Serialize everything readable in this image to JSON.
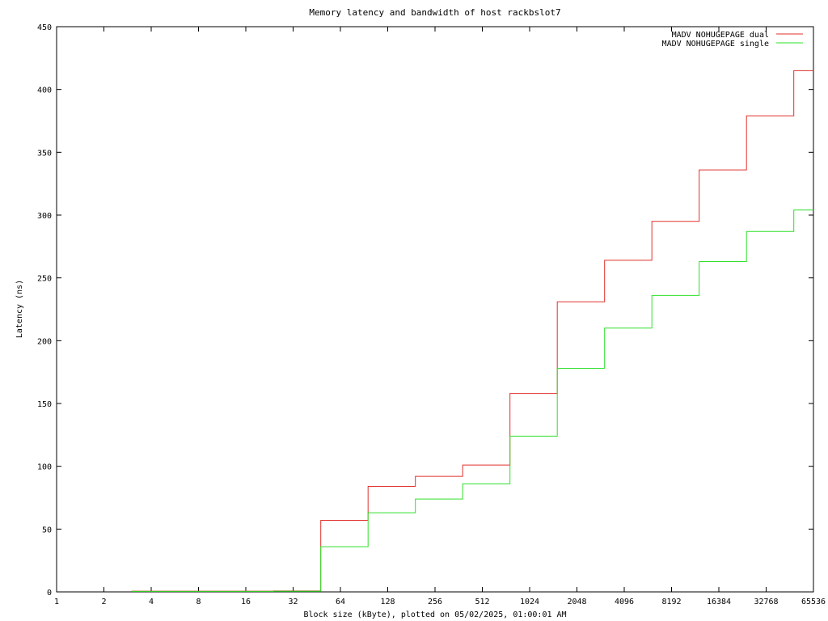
{
  "chart_data": {
    "type": "line",
    "step": true,
    "title": "Memory latency and bandwidth of host rackbslot7",
    "xlabel": "Block size (kByte), plotted on 05/02/2025, 01:00:01 AM",
    "ylabel": "Latency (ns)",
    "x_scale": "log2",
    "xlim": [
      1,
      65536
    ],
    "ylim": [
      0,
      450
    ],
    "x_ticks": [
      "1",
      "2",
      "4",
      "8",
      "16",
      "32",
      "64",
      "128",
      "256",
      "512",
      "1024",
      "2048",
      "4096",
      "8192",
      "16384",
      "32768",
      "65536"
    ],
    "y_ticks": [
      "0",
      "50",
      "100",
      "150",
      "200",
      "250",
      "300",
      "350",
      "400",
      "450"
    ],
    "legend_position": "top-right",
    "series": [
      {
        "name": "MADV NOHUGEPAGE dual",
        "color": "#e0302a",
        "x": [
          3,
          6,
          24,
          48,
          96,
          192,
          384,
          768,
          1536,
          3072,
          6144,
          12288,
          24576,
          49152,
          65536
        ],
        "y": [
          0.6,
          0.6,
          0.7,
          57,
          84,
          92,
          101,
          158,
          231,
          264,
          295,
          336,
          379,
          415,
          415
        ]
      },
      {
        "name": "MADV NOHUGEPAGE single",
        "color": "#2ee02a",
        "x": [
          3,
          6,
          24,
          48,
          96,
          192,
          384,
          768,
          1536,
          3072,
          6144,
          12288,
          24576,
          49152,
          65536
        ],
        "y": [
          0.4,
          0.4,
          0.5,
          36,
          63,
          74,
          86,
          124,
          178,
          210,
          236,
          263,
          287,
          304,
          304
        ]
      }
    ]
  }
}
